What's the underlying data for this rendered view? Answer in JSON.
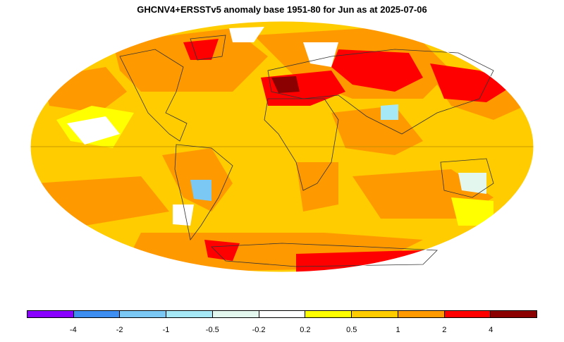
{
  "title": "GHCNV4+ERSSTv5 anomaly base 1951-80 for Jun as at 2025-07-06",
  "legend": {
    "colors": [
      "#8a00ff",
      "#3d8ef0",
      "#7cc8f5",
      "#a7e8f7",
      "#e3f7ee",
      "#ffffff",
      "#ffff00",
      "#ffcc00",
      "#ff9900",
      "#ff0000",
      "#8b0000"
    ],
    "tick_labels": [
      "-4",
      "-2",
      "-1",
      "-0.5",
      "-0.2",
      "0.2",
      "0.5",
      "1",
      "2",
      "4"
    ]
  },
  "colors": {
    "ocean_base": "#ffcc00",
    "coastline": "#333333"
  }
}
